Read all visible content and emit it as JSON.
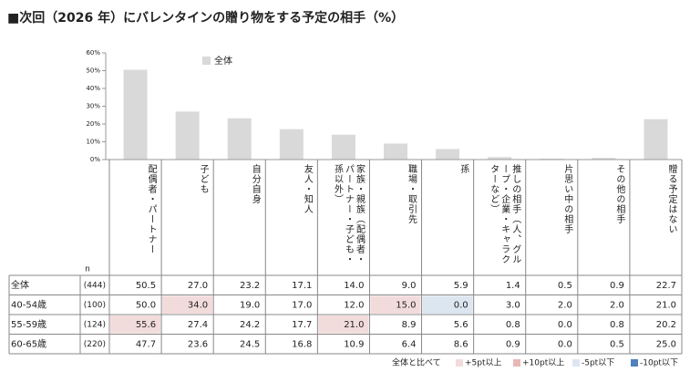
{
  "title": "■次回（2026 年）にバレンタインの贈り物をする予定の相手（%）",
  "chart_data": {
    "type": "bar",
    "categories": [
      "配偶者・パートナー",
      "子ども",
      "自分自身",
      "友人・知人",
      "家族・親族（配偶者・パートナー・子ども・孫以外）",
      "職場・取引先",
      "孫",
      "推しの相手（人、グループ・企業・キャラクターなど）",
      "片思い中の相手",
      "その他の相手",
      "贈る予定はない"
    ],
    "series": [
      {
        "name": "全体",
        "color": "#d9d9d9",
        "n": "(444)",
        "values": [
          50.5,
          27.0,
          23.2,
          17.1,
          14.0,
          9.0,
          5.9,
          1.4,
          0.5,
          0.9,
          22.7
        ],
        "value_labels": [
          "50.5",
          "27.0",
          "23.2",
          "17.1",
          "14.0",
          "9.0",
          "5.9",
          "1.4",
          "0.5",
          "0.9",
          "22.7"
        ]
      }
    ],
    "ylim": [
      0,
      60
    ],
    "yticks": [
      {
        "value": 0,
        "label": "0%"
      },
      {
        "value": 10,
        "label": "10%"
      },
      {
        "value": 20,
        "label": "20%"
      },
      {
        "value": 30,
        "label": "30%"
      },
      {
        "value": 40,
        "label": "40%"
      },
      {
        "value": 50,
        "label": "50%"
      },
      {
        "value": 60,
        "label": "60%"
      }
    ],
    "legend": "top-left"
  },
  "table": {
    "n_header": "n",
    "rows": [
      {
        "name": "40-54歳",
        "n": "(100)",
        "cells": [
          "50.0",
          "34.0",
          "19.0",
          "17.0",
          "12.0",
          "15.0",
          "0.0",
          "3.0",
          "2.0",
          "2.0",
          "21.0"
        ],
        "highlight": [
          null,
          0,
          null,
          null,
          null,
          0,
          2,
          null,
          null,
          null,
          null
        ]
      },
      {
        "name": "55-59歳",
        "n": "(124)",
        "cells": [
          "55.6",
          "27.4",
          "24.2",
          "17.7",
          "21.0",
          "8.9",
          "5.6",
          "0.8",
          "0.0",
          "0.8",
          "20.2"
        ],
        "highlight": [
          0,
          null,
          null,
          null,
          0,
          null,
          null,
          null,
          null,
          null,
          null
        ]
      },
      {
        "name": "60-65歳",
        "n": "(220)",
        "cells": [
          "47.7",
          "23.6",
          "24.5",
          "16.8",
          "10.9",
          "6.4",
          "8.6",
          "0.9",
          "0.0",
          "0.5",
          "25.0"
        ],
        "highlight": [
          null,
          null,
          null,
          null,
          null,
          null,
          null,
          null,
          null,
          null,
          null
        ]
      }
    ]
  },
  "legend": {
    "title": "全体と比べて",
    "items": [
      {
        "label": "+5pt以上",
        "color": "#f2dcdb"
      },
      {
        "label": "+10pt以上",
        "color": "#e6b8b7"
      },
      {
        "label": "-5pt以下",
        "color": "#dce6f1"
      },
      {
        "label": "-10pt以下",
        "color": "#4f81bd"
      }
    ]
  }
}
